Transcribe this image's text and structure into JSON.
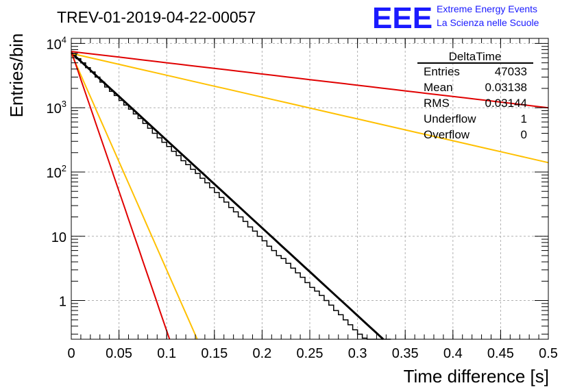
{
  "header": {
    "run_title": "TREV-01-2019-04-22-00057",
    "logo_text": "EEE",
    "logo_line1": "Extreme Energy Events",
    "logo_line2": "La Scienza nelle Scuole"
  },
  "colors": {
    "logo_blue": "#1a1aff",
    "histogram": "#000000",
    "fit_line": "#000000",
    "red_line": "#e00000",
    "orange_line": "#ffc000",
    "grid": "#b0b0b0"
  },
  "stats_box": {
    "title": "DeltaTime",
    "rows": [
      {
        "label": "Entries",
        "value": "47033"
      },
      {
        "label": "Mean",
        "value": "0.03138"
      },
      {
        "label": "RMS",
        "value": "0.03144"
      },
      {
        "label": "Underflow",
        "value": "1"
      },
      {
        "label": "Overflow",
        "value": "0"
      }
    ]
  },
  "chart_data": {
    "type": "line",
    "title": "TREV-01-2019-04-22-00057",
    "xlabel": "Time difference [s]",
    "ylabel": "Entries/bin",
    "xlim": [
      0,
      0.5
    ],
    "ylim": [
      0.25,
      12000
    ],
    "y_scale": "log",
    "grid": true,
    "x_ticks": [
      "0",
      "0.05",
      "0.1",
      "0.15",
      "0.2",
      "0.25",
      "0.3",
      "0.35",
      "0.4",
      "0.45",
      "0.5"
    ],
    "y_ticks": [
      {
        "value": 10000,
        "base": "10",
        "exp": "4"
      },
      {
        "value": 1000,
        "base": "10",
        "exp": "3"
      },
      {
        "value": 100,
        "base": "10",
        "exp": "2"
      },
      {
        "value": 10,
        "base": "10",
        "exp": ""
      },
      {
        "value": 1,
        "base": "1",
        "exp": ""
      }
    ],
    "histogram": {
      "name": "DeltaTime",
      "bin_width": 0.005,
      "x_start": 0,
      "counts": [
        7000,
        5800,
        5000,
        4200,
        3600,
        3000,
        2500,
        2100,
        1800,
        1550,
        1300,
        1100,
        950,
        800,
        680,
        570,
        480,
        400,
        340,
        290,
        250,
        210,
        180,
        150,
        130,
        110,
        95,
        80,
        68,
        57,
        48,
        40,
        34,
        28,
        24,
        20,
        17,
        14,
        12,
        10,
        8.5,
        7,
        6,
        5,
        4.5,
        3.8,
        3.2,
        2.7,
        2.3,
        1.9,
        1.6,
        1.4,
        1.2,
        1.0,
        0.85,
        0.7,
        0.6,
        0.5,
        0.42,
        0.35,
        0.3,
        0.26,
        0.23,
        0.2,
        0.18,
        0.16,
        0.14
      ]
    },
    "series": [
      {
        "color": "#000000",
        "x": [
          0,
          0.327
        ],
        "y": [
          7200,
          0.25
        ]
      },
      {
        "color": "#e00000",
        "x": [
          0,
          0.5
        ],
        "y": [
          7500,
          1000
        ]
      },
      {
        "color": "#ffc000",
        "x": [
          0,
          0.5
        ],
        "y": [
          7000,
          140
        ]
      },
      {
        "color": "#ffc000",
        "x": [
          0,
          0.132
        ],
        "y": [
          7000,
          0.25
        ]
      },
      {
        "color": "#e00000",
        "x": [
          0,
          0.103
        ],
        "y": [
          7500,
          0.25
        ]
      }
    ]
  }
}
